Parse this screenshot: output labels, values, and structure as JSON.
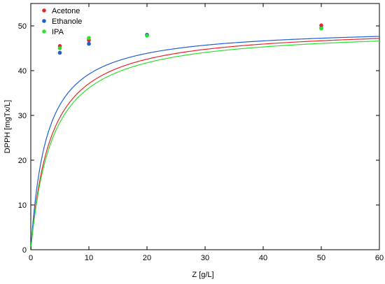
{
  "chart_data": {
    "type": "scatter",
    "xlabel": "Z [g/L]",
    "ylabel": "DPPH [mgTx/L]",
    "xlim": [
      0,
      60
    ],
    "ylim": [
      0,
      55
    ],
    "xticks": [
      0,
      10,
      20,
      30,
      40,
      50,
      60
    ],
    "yticks": [
      0,
      10,
      20,
      30,
      40,
      50
    ],
    "grid": false,
    "legend_position": "top-left",
    "series": [
      {
        "name": "Acetone",
        "color": "#e8262a",
        "points": [
          [
            5,
            45.5
          ],
          [
            10,
            46.8
          ],
          [
            20,
            48.0
          ],
          [
            50,
            50.1
          ]
        ],
        "fit": {
          "qmax": 49.9,
          "k": 0.29
        }
      },
      {
        "name": "Ethanole",
        "color": "#1f5fd1",
        "points": [
          [
            5,
            44.0
          ],
          [
            10,
            46.0
          ],
          [
            20,
            48.0
          ],
          [
            50,
            49.5
          ]
        ],
        "fit": {
          "qmax": 49.8,
          "k": 0.37
        }
      },
      {
        "name": "IPA",
        "color": "#2ee02e",
        "points": [
          [
            5,
            45.0
          ],
          [
            10,
            47.3
          ],
          [
            20,
            47.8
          ],
          [
            50,
            49.4
          ]
        ],
        "fit": {
          "qmax": 49.5,
          "k": 0.27
        }
      }
    ]
  }
}
